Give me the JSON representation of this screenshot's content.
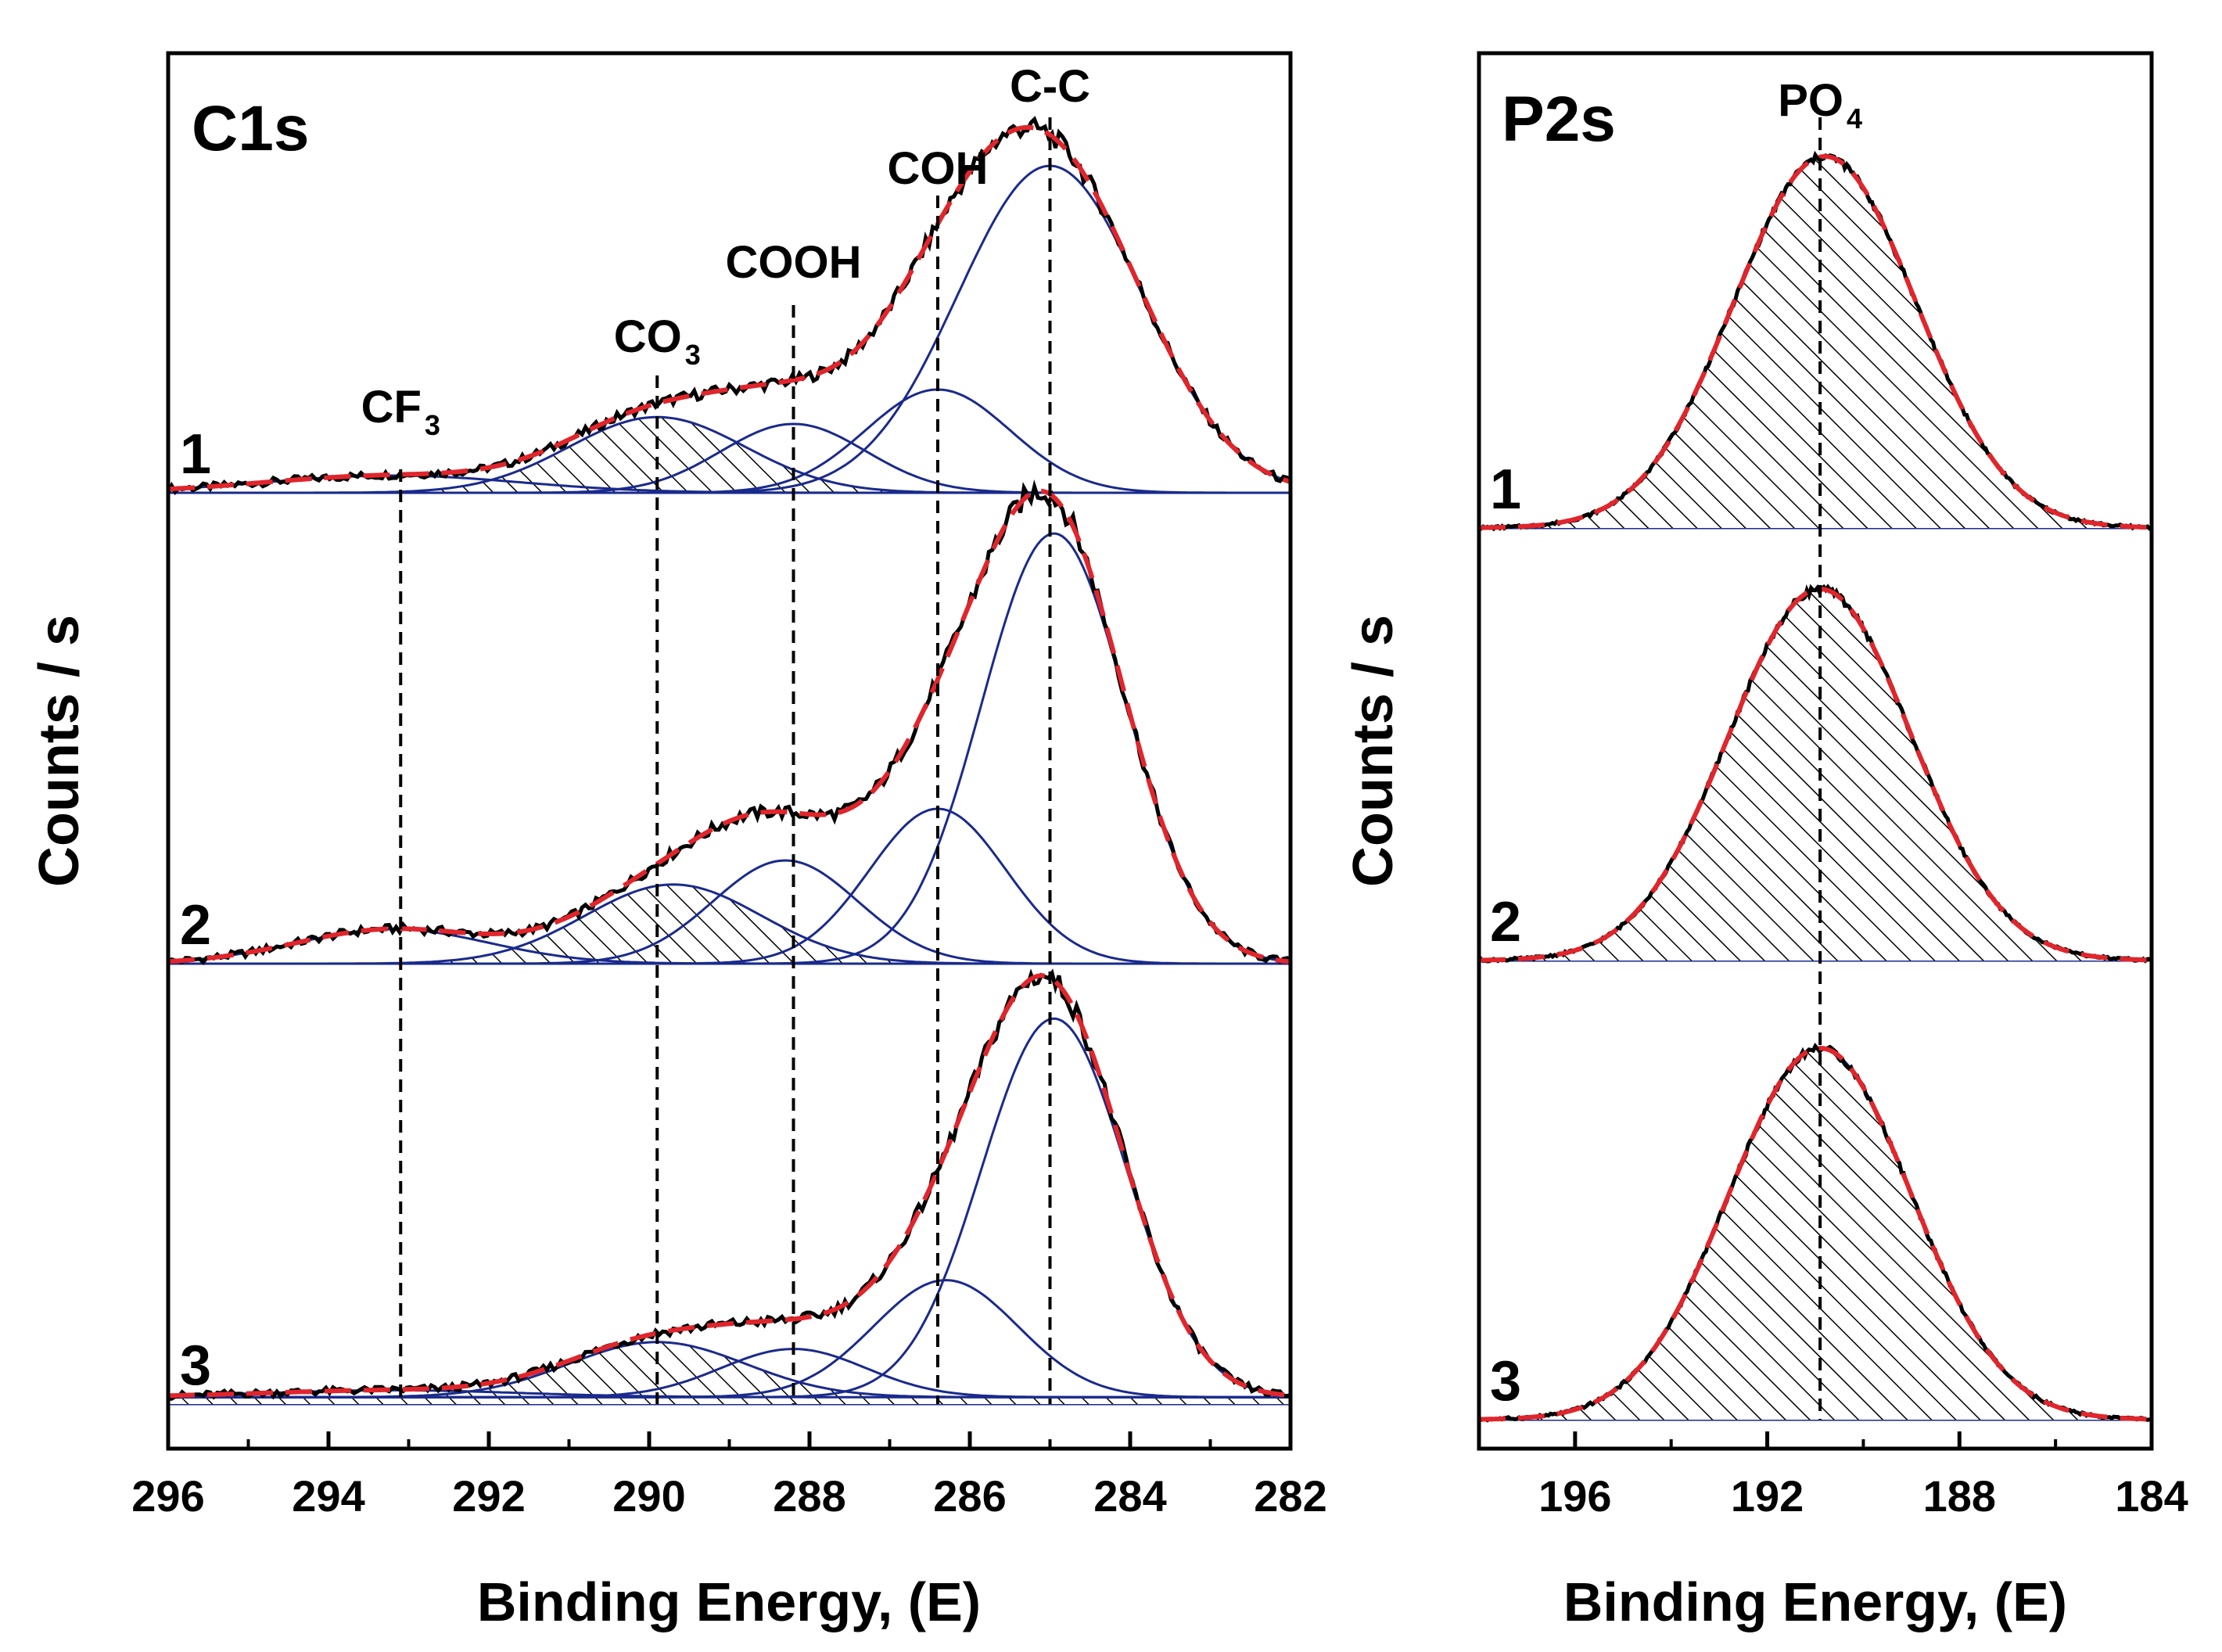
{
  "figure": {
    "type": "XPS spectra",
    "colors": {
      "measured": "#000000",
      "fit_envelope": "#e0262c",
      "component": "#1a2a8c",
      "reference_line": "#000000"
    }
  },
  "chart_data": [
    {
      "type": "line",
      "title": "C1s",
      "xlabel": "Binding Energy, (E)",
      "ylabel": "Counts / s",
      "xlim": [
        296,
        282
      ],
      "xticks": [
        296,
        294,
        292,
        290,
        288,
        286,
        284,
        282
      ],
      "reference_lines": [
        {
          "label": "CF",
          "sub": "3",
          "x": 293.1
        },
        {
          "label": "CO",
          "sub": "3",
          "x": 289.9
        },
        {
          "label": "COOH",
          "sub": "",
          "x": 288.2
        },
        {
          "label": "COH",
          "sub": "",
          "x": 286.4
        },
        {
          "label": "C-C",
          "sub": "",
          "x": 285.0
        }
      ],
      "series": [
        {
          "name": "1",
          "background": 0,
          "components": [
            {
              "center": 293.2,
              "height": 0.05,
              "width": 1.6
            },
            {
              "center": 289.9,
              "height": 0.22,
              "width": 1.1,
              "hatched": true
            },
            {
              "center": 288.2,
              "height": 0.2,
              "width": 0.9
            },
            {
              "center": 286.4,
              "height": 0.3,
              "width": 0.9
            },
            {
              "center": 285.0,
              "height": 0.95,
              "width": 1.15
            }
          ]
        },
        {
          "name": "2",
          "background": 0,
          "components": [
            {
              "center": 293.2,
              "height": 0.1,
              "width": 1.2
            },
            {
              "center": 289.7,
              "height": 0.23,
              "width": 1.1,
              "hatched": true
            },
            {
              "center": 288.3,
              "height": 0.3,
              "width": 0.9
            },
            {
              "center": 286.4,
              "height": 0.45,
              "width": 0.85
            },
            {
              "center": 284.95,
              "height": 1.25,
              "width": 0.9
            }
          ]
        },
        {
          "name": "3",
          "background": 0.02,
          "components": [
            {
              "center": 293.2,
              "height": 0.02,
              "width": 1.6
            },
            {
              "center": 289.9,
              "height": 0.16,
              "width": 1.1,
              "hatched": true
            },
            {
              "center": 288.2,
              "height": 0.14,
              "width": 0.9
            },
            {
              "center": 286.3,
              "height": 0.34,
              "width": 0.9
            },
            {
              "center": 284.95,
              "height": 1.1,
              "width": 0.9
            }
          ]
        }
      ]
    },
    {
      "type": "line",
      "title": "P2s",
      "xlabel": "Binding Energy, (E)",
      "ylabel": "Counts / s",
      "xlim": [
        198,
        184
      ],
      "xticks": [
        196,
        192,
        188,
        184
      ],
      "reference_lines": [
        {
          "label": "PO",
          "sub": "4",
          "x": 190.9
        }
      ],
      "series": [
        {
          "name": "1",
          "components": [
            {
              "center": 190.8,
              "height": 1.0,
              "width": 1.9,
              "hatched": true
            }
          ]
        },
        {
          "name": "2",
          "components": [
            {
              "center": 190.9,
              "height": 1.0,
              "width": 1.9,
              "hatched": true
            }
          ]
        },
        {
          "name": "3",
          "components": [
            {
              "center": 190.9,
              "height": 1.0,
              "width": 1.9,
              "hatched": true
            }
          ]
        }
      ]
    }
  ]
}
